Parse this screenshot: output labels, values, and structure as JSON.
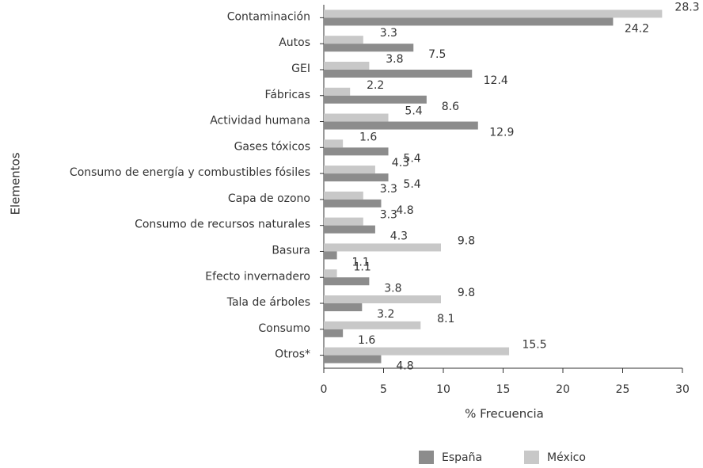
{
  "chart_data": {
    "type": "barh",
    "categories": [
      "Contaminación",
      "Autos",
      "GEI",
      "Fábricas",
      "Actividad humana",
      "Gases tóxicos",
      "Consumo de energía y combustibles fósiles",
      "Capa de ozono",
      "Consumo de recursos naturales",
      "Basura",
      "Efecto invernadero",
      "Tala de árboles",
      "Consumo",
      "Otros*"
    ],
    "series": [
      {
        "name": "España",
        "color": "#8c8c8c",
        "values": [
          24.2,
          7.5,
          12.4,
          8.6,
          12.9,
          5.4,
          5.4,
          4.8,
          4.3,
          1.1,
          3.8,
          3.2,
          1.6,
          4.8
        ]
      },
      {
        "name": "México",
        "color": "#c8c8c8",
        "values": [
          28.3,
          3.3,
          3.8,
          2.2,
          5.4,
          1.6,
          4.3,
          3.3,
          3.3,
          9.8,
          1.1,
          9.8,
          8.1,
          15.5
        ]
      }
    ],
    "xlabel": "% Frecuencia",
    "ylabel": "Elementos",
    "xlim": [
      0,
      30
    ],
    "xticks": [
      0,
      5,
      10,
      15,
      20,
      25,
      30
    ]
  }
}
